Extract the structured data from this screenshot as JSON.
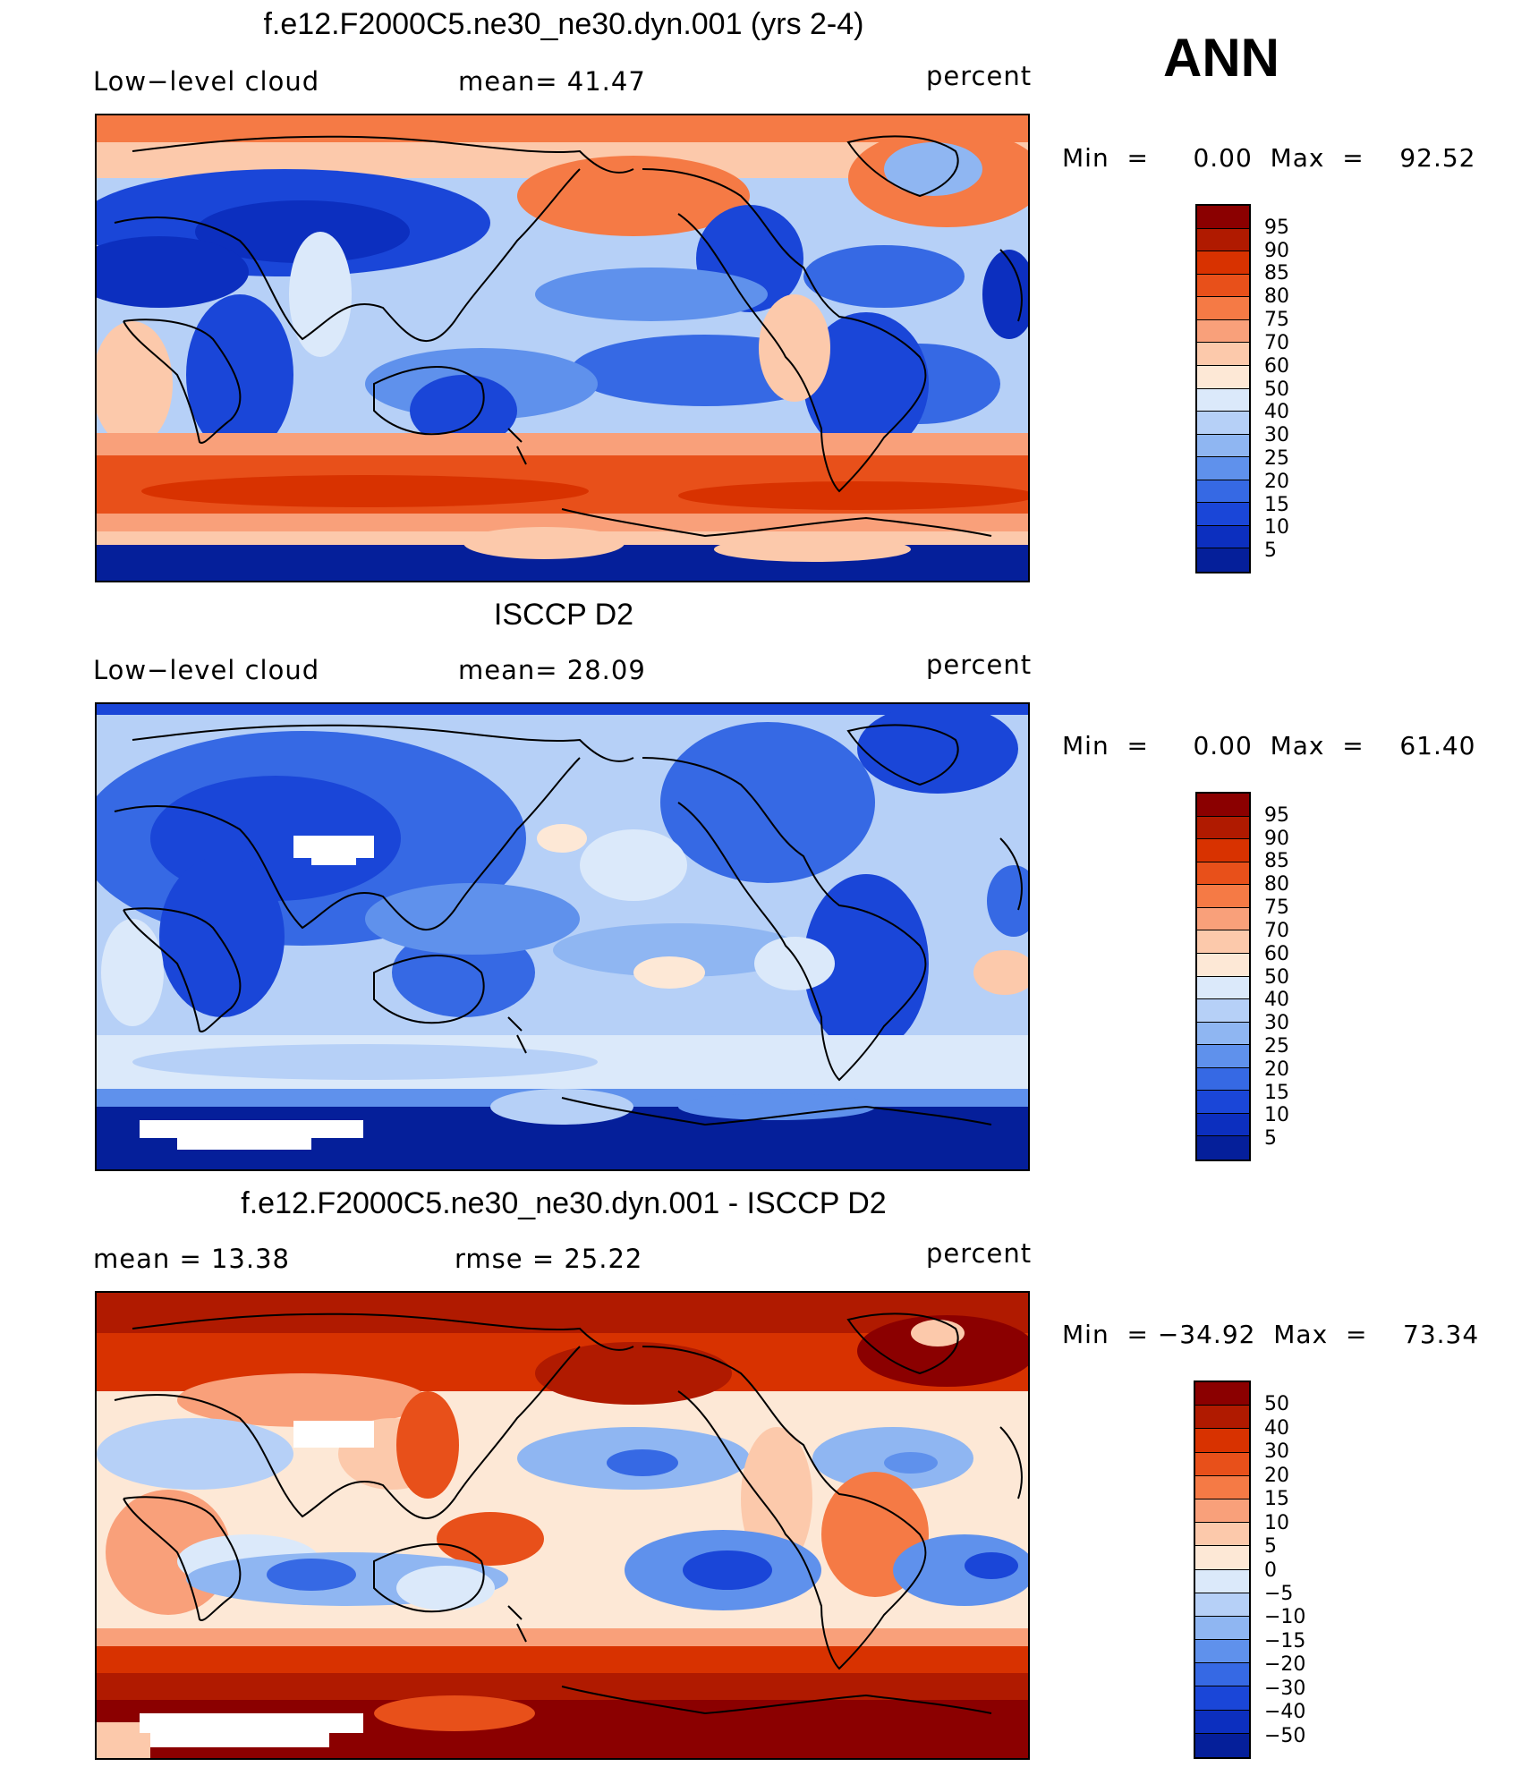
{
  "season": "ANN",
  "units": "percent",
  "panels": [
    {
      "title": "f.e12.F2000C5.ne30_ne30.dyn.001 (yrs 2-4)",
      "left_label": "Low−level  cloud",
      "center_label": "mean=   41.47",
      "units": "percent",
      "minmax": "Min  =     0.00  Max  =    92.52",
      "kind": "model"
    },
    {
      "title": "ISCCP D2",
      "left_label": "Low−level  cloud",
      "center_label": "mean=   28.09",
      "units": "percent",
      "minmax": "Min  =     0.00  Max  =    61.40",
      "kind": "obs"
    },
    {
      "title": "f.e12.F2000C5.ne30_ne30.dyn.001 - ISCCP D2",
      "left_label": "mean  =    13.38",
      "center_label": "rmse  =    25.22",
      "units": "percent",
      "minmax": "Min  = −34.92  Max  =    73.34",
      "kind": "diff"
    }
  ],
  "colorbars": {
    "field": {
      "labels": [
        "95",
        "90",
        "85",
        "80",
        "75",
        "70",
        "60",
        "50",
        "40",
        "30",
        "25",
        "20",
        "15",
        "10",
        "5"
      ],
      "colors": [
        "#8b0000",
        "#b01a00",
        "#d83200",
        "#e8501a",
        "#f57a45",
        "#f9a07a",
        "#fcc9ab",
        "#fde8d6",
        "#dbe9fa",
        "#b6d0f7",
        "#8fb6f2",
        "#5f91ec",
        "#3669e4",
        "#1a46d8",
        "#0c2fbf",
        "#051f9a"
      ]
    },
    "diff": {
      "labels": [
        "50",
        "40",
        "30",
        "20",
        "15",
        "10",
        "5",
        "0",
        "−5",
        "−10",
        "−15",
        "−20",
        "−30",
        "−40",
        "−50"
      ],
      "colors": [
        "#8b0000",
        "#b01a00",
        "#d83200",
        "#e8501a",
        "#f57a45",
        "#f9a07a",
        "#fcc9ab",
        "#fde8d6",
        "#dbe9fa",
        "#b6d0f7",
        "#8fb6f2",
        "#5f91ec",
        "#3669e4",
        "#1a46d8",
        "#0c2fbf",
        "#051f9a"
      ]
    }
  }
}
